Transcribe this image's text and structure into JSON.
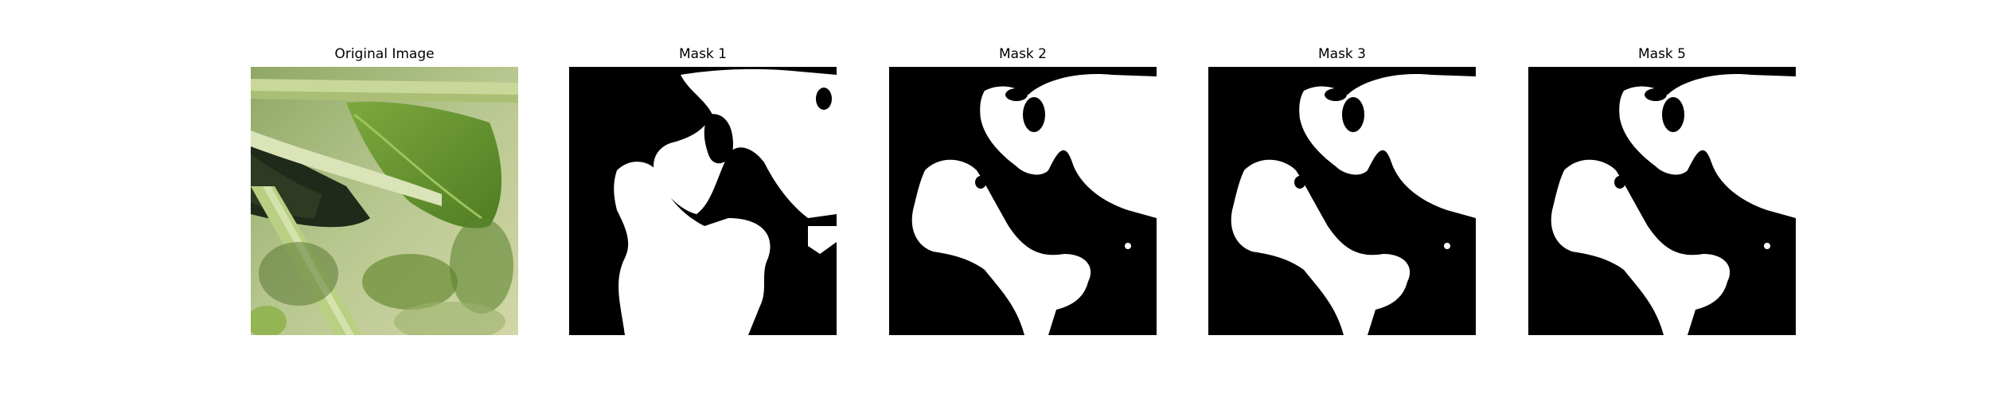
{
  "figure": {
    "panels": [
      {
        "title": "Original Image",
        "kind": "photo"
      },
      {
        "title": "Mask 1",
        "kind": "mask"
      },
      {
        "title": "Mask 2",
        "kind": "mask"
      },
      {
        "title": "Mask 3",
        "kind": "mask"
      },
      {
        "title": "Mask 5",
        "kind": "mask"
      }
    ],
    "colors": {
      "mask_foreground": "#ffffff",
      "mask_background": "#000000",
      "leaf_light": "#a9c26a",
      "leaf_dark": "#5f8a2e",
      "stem": "#c9d89a",
      "shadow": "#1f2a1a"
    }
  }
}
